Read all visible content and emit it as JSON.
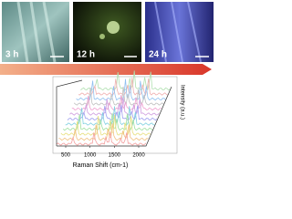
{
  "panels": [
    {
      "label": "3 h"
    },
    {
      "label": "12 h"
    },
    {
      "label": "24 h"
    }
  ],
  "plot": {
    "x_label": "Raman Shift (cm-1)",
    "y_label": "Intensity (a.u.)",
    "xticks": [
      500,
      1000,
      1500,
      2000
    ]
  }
}
